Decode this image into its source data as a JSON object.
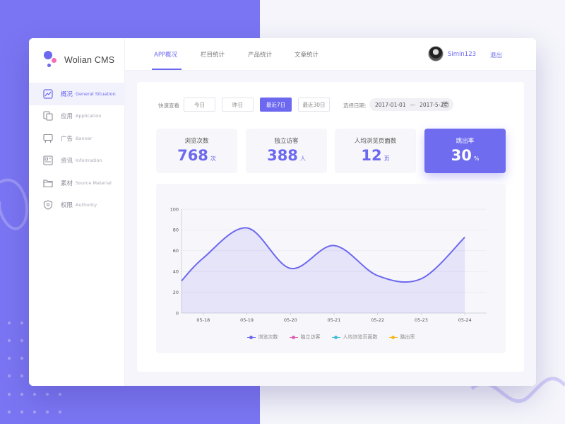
{
  "app": {
    "title": "Wolian CMS"
  },
  "sidebar": {
    "items": [
      {
        "label_cn": "概况",
        "label_en": "General Situation",
        "icon": "chart-line-icon",
        "active": true
      },
      {
        "label_cn": "应用",
        "label_en": "Application",
        "icon": "app-copy-icon",
        "active": false
      },
      {
        "label_cn": "广告",
        "label_en": "Banner",
        "icon": "billboard-icon",
        "active": false
      },
      {
        "label_cn": "资讯",
        "label_en": "Information",
        "icon": "news-icon",
        "active": false
      },
      {
        "label_cn": "素材",
        "label_en": "Source Material",
        "icon": "folder-icon",
        "active": false
      },
      {
        "label_cn": "权限",
        "label_en": "Authority",
        "icon": "shield-icon",
        "active": false
      }
    ]
  },
  "header": {
    "tabs": [
      {
        "label": "APP概况",
        "active": true
      },
      {
        "label": "栏目统计",
        "active": false
      },
      {
        "label": "产品统计",
        "active": false
      },
      {
        "label": "文章统计",
        "active": false
      }
    ],
    "user": {
      "name": "Simin123"
    },
    "logout_label": "退出"
  },
  "filters": {
    "quick_label": "快速查看",
    "quick_options": [
      {
        "label": "今日",
        "active": false
      },
      {
        "label": "昨日",
        "active": false
      },
      {
        "label": "最近7日",
        "active": true
      },
      {
        "label": "最近30日",
        "active": false
      }
    ],
    "date_label": "选择日期:",
    "date_from": "2017-01-01",
    "date_sep": "—",
    "date_to": "2017-5-24"
  },
  "stats": [
    {
      "label": "浏览次数",
      "value": "768",
      "unit": "次",
      "highlight": false
    },
    {
      "label": "独立访客",
      "value": "388",
      "unit": "人",
      "highlight": false
    },
    {
      "label": "人均浏览页面数",
      "value": "12",
      "unit": "页",
      "highlight": false
    },
    {
      "label": "跳出率",
      "value": "30",
      "unit": "%",
      "highlight": true
    }
  ],
  "colors": {
    "accent": "#6c68ef",
    "sidebar_bg": "#7a75f2"
  },
  "chart_data": {
    "type": "area",
    "x": [
      "05-18",
      "05-19",
      "05-20",
      "05-21",
      "05-22",
      "05-23",
      "05-24"
    ],
    "ylim": [
      0,
      100
    ],
    "yticks": [
      0,
      20,
      40,
      60,
      80,
      100
    ],
    "grid": true,
    "legend_position": "bottom",
    "series": [
      {
        "name": "浏览次数",
        "color": "#6c68ef",
        "points": [
          [
            17.5,
            31
          ],
          [
            18,
            53
          ],
          [
            19,
            82
          ],
          [
            20,
            43
          ],
          [
            21,
            65
          ],
          [
            22,
            36
          ],
          [
            23,
            33
          ],
          [
            24,
            73
          ]
        ]
      }
    ],
    "legend": [
      {
        "name": "浏览次数",
        "color": "#6c68ef"
      },
      {
        "name": "独立访客",
        "color": "#e25fb1"
      },
      {
        "name": "人均浏览页面数",
        "color": "#3fbfd9"
      },
      {
        "name": "跳出率",
        "color": "#f5b921"
      }
    ]
  }
}
